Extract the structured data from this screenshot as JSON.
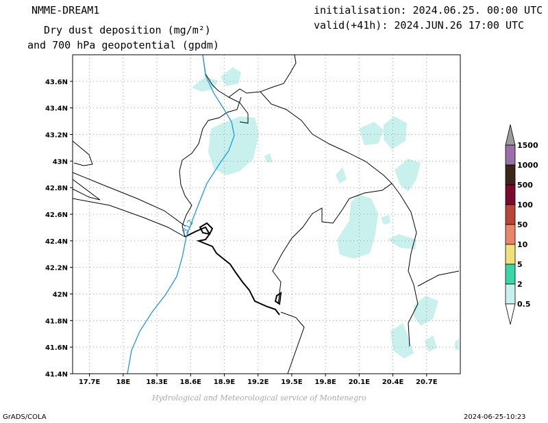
{
  "header": {
    "model": "NMME-DREAM1",
    "title_line1": "Dry dust deposition (mg/m²)",
    "title_line2": "and 700 hPa geopotential (gpdm)",
    "initialisation": "initialisation: 2024.06.25. 00:00 UTC",
    "valid": "valid(+41h): 2024.JUN.26 17:00 UTC"
  },
  "map": {
    "lat_labels": [
      "43.6N",
      "43.4N",
      "43.2N",
      "43N",
      "42.8N",
      "42.6N",
      "42.4N",
      "42.2N",
      "42N",
      "41.8N",
      "41.6N",
      "41.4N"
    ],
    "lon_labels": [
      "17.7E",
      "18E",
      "18.3E",
      "18.6E",
      "18.9E",
      "19.2E",
      "19.5E",
      "19.8E",
      "20.1E",
      "20.4E",
      "20.7E"
    ],
    "lat_range": [
      41.4,
      43.8
    ],
    "lon_range": [
      17.55,
      21.0
    ],
    "contour_label": "312",
    "contour_color": "#1e96e6",
    "dust_fill_color": "#c8f0ec",
    "grid": true
  },
  "legend": {
    "levels": [
      "1500",
      "1000",
      "500",
      "100",
      "50",
      "10",
      "5",
      "2",
      "0.5"
    ],
    "colors": [
      "#9b6fa8",
      "#3d2517",
      "#7a0a2e",
      "#b8473a",
      "#e8866a",
      "#f0e07a",
      "#3cd6a6",
      "#c8f0ec"
    ]
  },
  "footer": {
    "credit": "Hydrological and Meteorological service of Montenegro",
    "software": "GrADS/COLA",
    "timestamp": "2024-06-25-10:23"
  }
}
